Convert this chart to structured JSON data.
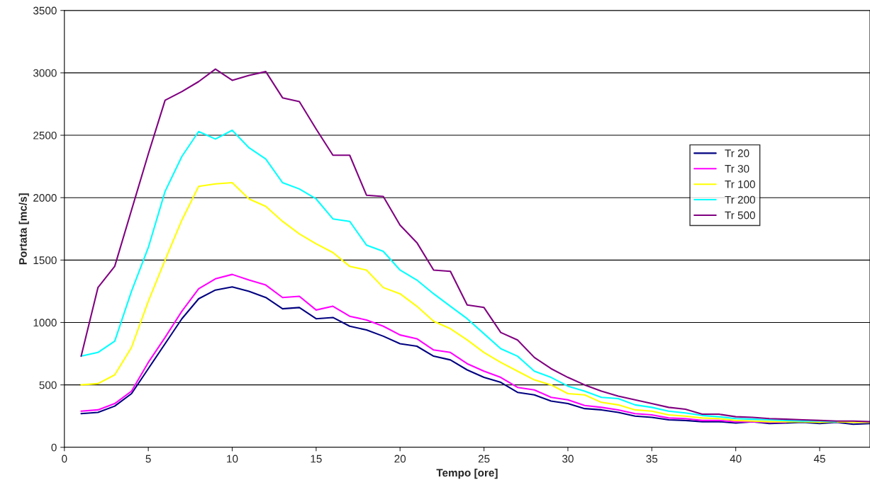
{
  "chart_data": {
    "type": "line",
    "xlabel": "Tempo [ore]",
    "ylabel": "Portata [mc/s]",
    "x": [
      1,
      2,
      3,
      4,
      5,
      6,
      7,
      8,
      9,
      10,
      11,
      12,
      13,
      14,
      15,
      16,
      17,
      18,
      19,
      20,
      21,
      22,
      23,
      24,
      25,
      26,
      27,
      28,
      29,
      30,
      31,
      32,
      33,
      34,
      35,
      36,
      37,
      38,
      39,
      40,
      41,
      42,
      43,
      44,
      45,
      46,
      47,
      48
    ],
    "series": [
      {
        "name": "Tr 20",
        "color": "#000080",
        "values": [
          270,
          280,
          330,
          430,
          630,
          830,
          1030,
          1190,
          1260,
          1285,
          1250,
          1200,
          1110,
          1120,
          1030,
          1040,
          970,
          940,
          890,
          830,
          810,
          730,
          700,
          620,
          560,
          520,
          440,
          420,
          370,
          350,
          310,
          300,
          280,
          250,
          240,
          220,
          215,
          205,
          205,
          195,
          205,
          190,
          195,
          200,
          190,
          200,
          185,
          190
        ]
      },
      {
        "name": "Tr 30",
        "color": "#ff00ff",
        "values": [
          290,
          300,
          350,
          450,
          680,
          880,
          1090,
          1270,
          1350,
          1385,
          1340,
          1300,
          1200,
          1210,
          1100,
          1130,
          1050,
          1020,
          970,
          900,
          870,
          780,
          760,
          670,
          610,
          560,
          480,
          460,
          400,
          380,
          335,
          320,
          300,
          270,
          260,
          235,
          230,
          215,
          215,
          205,
          205,
          200,
          200,
          null,
          null,
          null,
          null,
          null
        ]
      },
      {
        "name": "Tr 100",
        "color": "#ffff00",
        "values": [
          500,
          510,
          580,
          800,
          1170,
          1500,
          1820,
          2090,
          2110,
          2120,
          1990,
          1930,
          1810,
          1710,
          1630,
          1560,
          1450,
          1420,
          1280,
          1230,
          1130,
          1010,
          950,
          860,
          760,
          680,
          610,
          540,
          500,
          430,
          420,
          360,
          340,
          300,
          290,
          260,
          250,
          235,
          230,
          215,
          210,
          205,
          205,
          205,
          200,
          205,
          200,
          200
        ]
      },
      {
        "name": "Tr 200",
        "color": "#00ffff",
        "values": [
          730,
          760,
          850,
          1250,
          1600,
          2050,
          2330,
          2530,
          2470,
          2540,
          2400,
          2310,
          2120,
          2070,
          1990,
          1830,
          1810,
          1620,
          1570,
          1420,
          1340,
          1230,
          1130,
          1030,
          910,
          790,
          730,
          610,
          560,
          490,
          450,
          400,
          390,
          340,
          320,
          290,
          275,
          255,
          245,
          230,
          225,
          220,
          215,
          210,
          210,
          205,
          null,
          null
        ]
      },
      {
        "name": "Tr 500",
        "color": "#800080",
        "values": [
          730,
          1280,
          1450,
          1900,
          2350,
          2780,
          2850,
          2930,
          3030,
          2940,
          2980,
          3010,
          2800,
          2770,
          2550,
          2340,
          2340,
          2020,
          2010,
          1780,
          1640,
          1420,
          1410,
          1140,
          1120,
          920,
          860,
          720,
          630,
          560,
          500,
          450,
          410,
          380,
          350,
          320,
          305,
          265,
          265,
          245,
          240,
          230,
          225,
          220,
          215,
          210,
          210,
          205
        ]
      }
    ],
    "xlim": [
      0,
      48
    ],
    "xticks": [
      0,
      5,
      10,
      15,
      20,
      25,
      30,
      35,
      40,
      45
    ],
    "ylim": [
      0,
      3500
    ],
    "yticks": [
      0,
      500,
      1000,
      1500,
      2000,
      2500,
      3000,
      3500
    ],
    "grid": "y",
    "legend": "right",
    "marker": "none",
    "line_style": "solid"
  }
}
